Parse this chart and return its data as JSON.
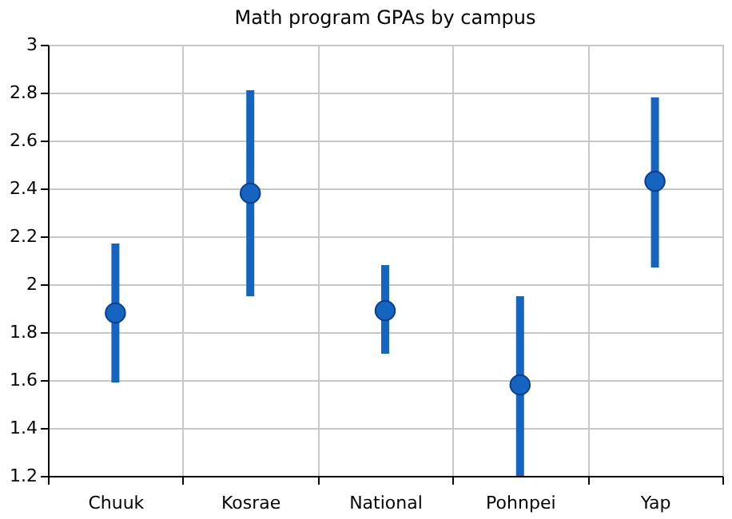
{
  "chart_data": {
    "type": "scatter",
    "title": "Math program GPAs by campus",
    "categories": [
      "Chuuk",
      "Kosrae",
      "National",
      "Pohnpei",
      "Yap"
    ],
    "values": [
      1.88,
      2.38,
      1.89,
      1.58,
      2.43
    ],
    "errors": [
      [
        1.59,
        2.17
      ],
      [
        1.95,
        2.81
      ],
      [
        1.71,
        2.08
      ],
      [
        1.2,
        1.95
      ],
      [
        2.07,
        2.78
      ]
    ],
    "color": "#1565c0",
    "marker": "circle",
    "ylim": [
      1.2,
      3
    ],
    "yticks": [
      1.2,
      1.4,
      1.6,
      1.8,
      2,
      2.2,
      2.4,
      2.6,
      2.8,
      3
    ],
    "grid": true
  }
}
